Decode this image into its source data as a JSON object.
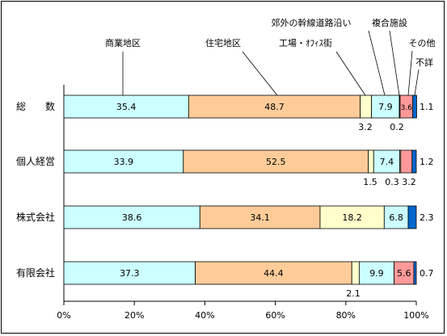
{
  "chart_data": {
    "type": "bar",
    "orientation": "horizontal",
    "stacked": true,
    "title": "",
    "xlabel": "",
    "ylabel": "",
    "xlim": [
      0,
      100
    ],
    "x_ticks": [
      "0%",
      "20%",
      "40%",
      "60%",
      "80%",
      "100%"
    ],
    "categories": [
      "総　　数",
      "個人経営",
      "株式会社",
      "有限会社"
    ],
    "series": [
      {
        "name": "商業地区",
        "color": "#ccffff",
        "values": [
          35.4,
          33.9,
          38.6,
          37.3
        ],
        "labels": [
          "35.4",
          "33.9",
          "38.6",
          "37.3"
        ]
      },
      {
        "name": "住宅地区",
        "color": "#ffcc99",
        "values": [
          48.7,
          52.5,
          34.1,
          44.4
        ],
        "labels": [
          "48.7",
          "52.5",
          "34.1",
          "44.4"
        ]
      },
      {
        "name": "工場・ｵﾌｨｽ街",
        "color": "#ffffcc",
        "values": [
          3.2,
          1.5,
          18.2,
          2.1
        ],
        "labels": [
          "3.2",
          "1.5",
          "18.2",
          "2.1"
        ]
      },
      {
        "name": "郊外の幹線道路沿い",
        "color": "#ccffff",
        "values": [
          7.9,
          7.4,
          6.8,
          9.9
        ],
        "labels": [
          "7.9",
          "7.4",
          "6.8",
          "9.9"
        ]
      },
      {
        "name": "複合施設",
        "color": "#ffffcc",
        "values": [
          0.2,
          0.3,
          0.0,
          0.0
        ],
        "labels": [
          "0.2",
          "0.3",
          "",
          ""
        ]
      },
      {
        "name": "その他",
        "color": "#ff9999",
        "values": [
          3.6,
          3.2,
          0.0,
          5.6
        ],
        "labels": [
          "3.6",
          "3.2",
          "",
          "5.6"
        ]
      },
      {
        "name": "不詳",
        "color": "#0066cc",
        "values": [
          1.1,
          1.2,
          2.3,
          0.7
        ],
        "labels": [
          "1.1",
          "1.2",
          "2.3",
          "0.7"
        ]
      }
    ]
  }
}
